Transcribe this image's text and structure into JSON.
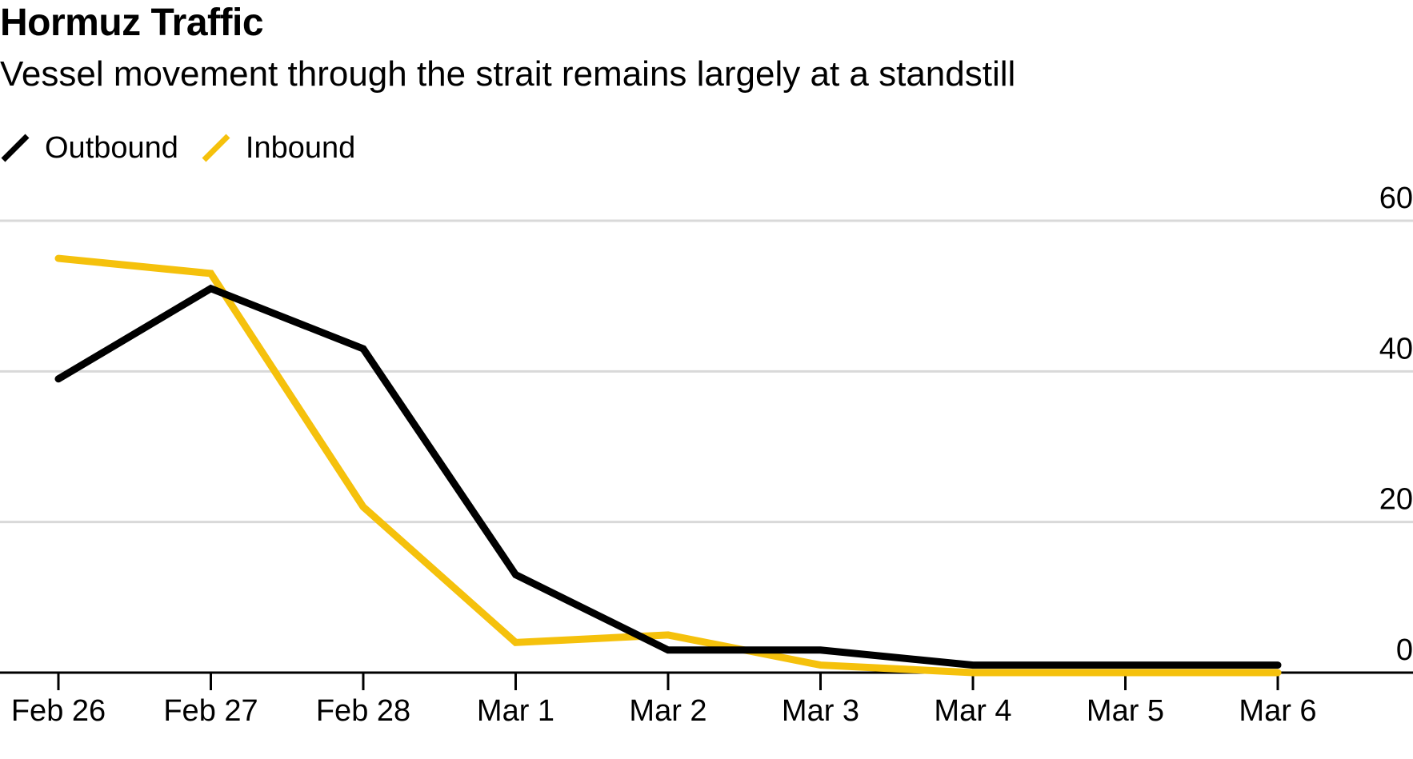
{
  "title": "Hormuz Traffic",
  "subtitle": "Vessel movement through the strait remains largely at a standstill",
  "colors": {
    "outbound": "#000000",
    "inbound": "#F5C10C",
    "grid": "#d9d9d9",
    "axis": "#000000"
  },
  "chart_data": {
    "type": "line",
    "categories": [
      "Feb 26",
      "Feb 27",
      "Feb 28",
      "Mar 1",
      "Mar 2",
      "Mar 3",
      "Mar 4",
      "Mar 5",
      "Mar 6"
    ],
    "series": [
      {
        "name": "Outbound",
        "color": "#000000",
        "values": [
          39,
          51,
          43,
          13,
          3,
          3,
          1,
          1,
          1
        ]
      },
      {
        "name": "Inbound",
        "color": "#F5C10C",
        "values": [
          55,
          53,
          22,
          4,
          5,
          1,
          0,
          null,
          0
        ]
      }
    ],
    "yticks": [
      "60",
      "40",
      "20",
      "0"
    ],
    "ylim": [
      0,
      60
    ],
    "grid": true,
    "y_axis_side": "right",
    "legend_position": "top-left"
  }
}
